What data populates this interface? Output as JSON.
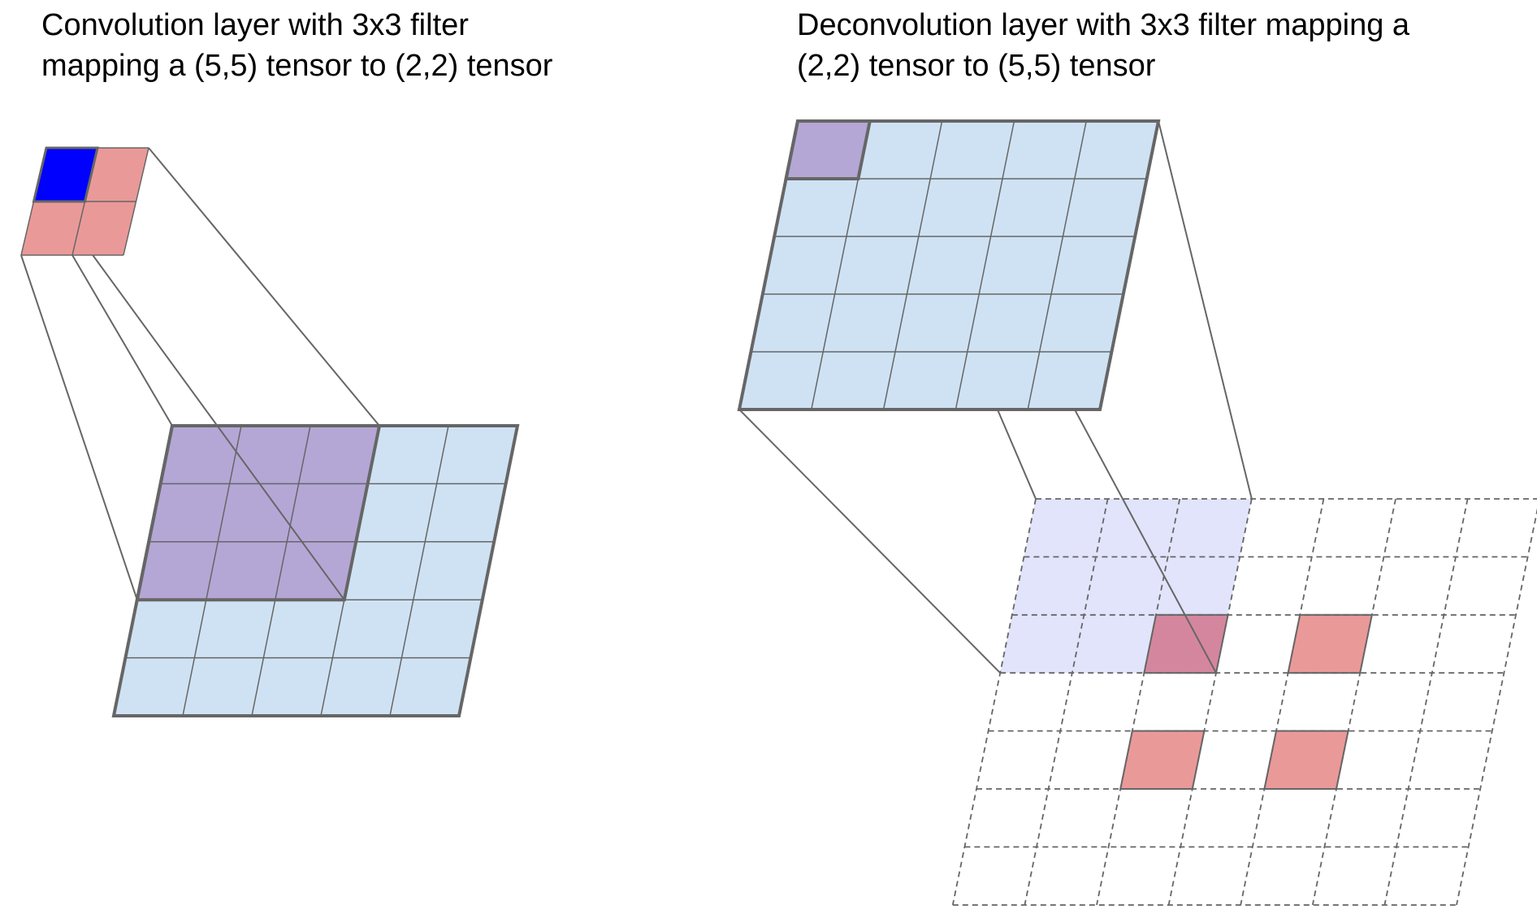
{
  "left_panel": {
    "caption_lines": [
      "Convolution layer with 3x3 filter",
      "mapping a (5,5) tensor to (2,2) tensor"
    ],
    "input_grid": {
      "rows": 5,
      "cols": 5
    },
    "output_grid": {
      "rows": 2,
      "cols": 2
    },
    "filter_size": [
      3,
      3
    ]
  },
  "right_panel": {
    "caption_lines": [
      "Deconvolution layer with 3x3 filter mapping a",
      "(2,2) tensor to (5,5) tensor"
    ],
    "input_grid": {
      "rows": 5,
      "cols": 5
    },
    "output_grid": {
      "rows": 7,
      "cols": 7
    },
    "filter_size": [
      3,
      3
    ]
  },
  "colors": {
    "grid_fill": "#cfe2f3",
    "filter_window": "#b4a7d6",
    "output_cell": "#ea9999",
    "active_output_cell": "#0000ff",
    "light_window": "#e1e4fb",
    "overlap_cell": "#d5869f",
    "stroke": "#666666"
  }
}
